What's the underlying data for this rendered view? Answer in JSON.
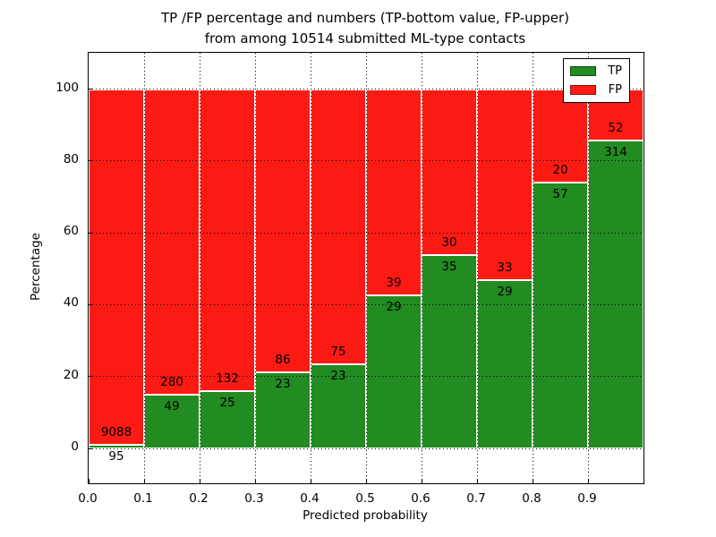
{
  "title": {
    "line1": "TP /FP percentage and numbers (TP-bottom value, FP-upper)",
    "line2": "from among 10514 submitted ML-type contacts"
  },
  "total_submitted_contacts": "10514",
  "chart_data": {
    "type": "bar",
    "stacked": true,
    "normalized": "each bar totals 100%; green TP segment on bottom, red FP segment on top",
    "title": "TP /FP percentage and numbers (TP-bottom value, FP-upper) from among 10514 submitted ML-type contacts",
    "xlabel": "Predicted probability",
    "ylabel": "Percentage",
    "categories": [
      "0.0-0.1",
      "0.1-0.2",
      "0.2-0.3",
      "0.3-0.4",
      "0.4-0.5",
      "0.5-0.6",
      "0.6-0.7",
      "0.7-0.8",
      "0.8-0.9",
      "0.9-1.0"
    ],
    "x_tick_labels": [
      "0.0",
      "0.1",
      "0.2",
      "0.3",
      "0.4",
      "0.5",
      "0.6",
      "0.7",
      "0.8",
      "0.9"
    ],
    "y_tick_values": [
      0,
      20,
      40,
      60,
      80,
      100
    ],
    "xlim": [
      0.0,
      1.0
    ],
    "ylim": [
      -10,
      110
    ],
    "grid": "dotted black, horizontal every 20%, vertical every 0.1",
    "series": [
      {
        "name": "TP",
        "color": "#228b22",
        "position": "bottom",
        "counts": [
          95,
          49,
          25,
          23,
          23,
          29,
          35,
          29,
          57,
          314
        ]
      },
      {
        "name": "FP",
        "color": "#fc1b14",
        "position": "top",
        "counts": [
          9088,
          280,
          132,
          86,
          75,
          39,
          30,
          33,
          20,
          52
        ]
      }
    ],
    "tp_percent_by_bin": [
      1.0,
      14.9,
      15.9,
      21.1,
      23.5,
      42.6,
      53.8,
      46.8,
      74.0,
      85.8
    ],
    "legend": {
      "position": "upper right",
      "entries": [
        "TP",
        "FP"
      ]
    }
  }
}
